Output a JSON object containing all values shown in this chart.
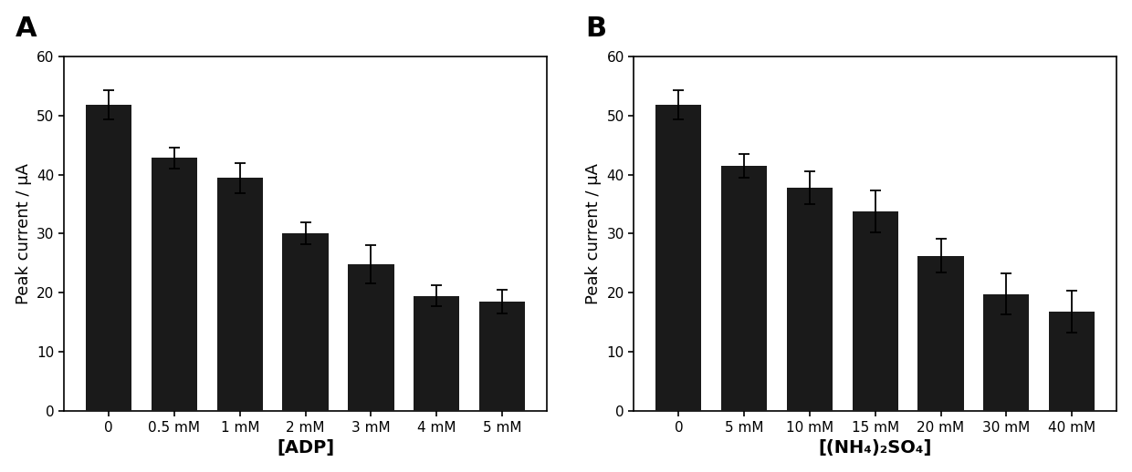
{
  "panel_A": {
    "label": "A",
    "categories": [
      "0",
      "0.5 mM",
      "1 mM",
      "2 mM",
      "3 mM",
      "4 mM",
      "5 mM"
    ],
    "values": [
      51.8,
      42.8,
      39.4,
      30.1,
      24.8,
      19.5,
      18.5
    ],
    "errors": [
      2.5,
      1.8,
      2.5,
      1.8,
      3.2,
      1.8,
      2.0
    ],
    "xlabel": "[ADP]",
    "ylabel": "Peak current / μA",
    "ylim": [
      0,
      60
    ],
    "yticks": [
      0,
      10,
      20,
      30,
      40,
      50,
      60
    ],
    "bar_color": "#1a1a1a"
  },
  "panel_B": {
    "label": "B",
    "categories": [
      "0",
      "5 mM",
      "10 mM",
      "15 mM",
      "20 mM",
      "30 mM",
      "40 mM"
    ],
    "values": [
      51.8,
      41.5,
      37.8,
      33.8,
      26.3,
      19.8,
      16.8
    ],
    "errors": [
      2.5,
      2.0,
      2.8,
      3.5,
      2.8,
      3.5,
      3.5
    ],
    "xlabel": "[(NH₄)₂SO₄]",
    "ylabel": "Peak current / μA",
    "ylim": [
      0,
      60
    ],
    "yticks": [
      0,
      10,
      20,
      30,
      40,
      50,
      60
    ],
    "bar_color": "#1a1a1a"
  },
  "background_color": "#ffffff",
  "bar_width": 0.7,
  "tick_fontsize": 11,
  "axis_label_fontsize": 13,
  "panel_label_fontsize": 22,
  "xlabel_fontsize": 14
}
